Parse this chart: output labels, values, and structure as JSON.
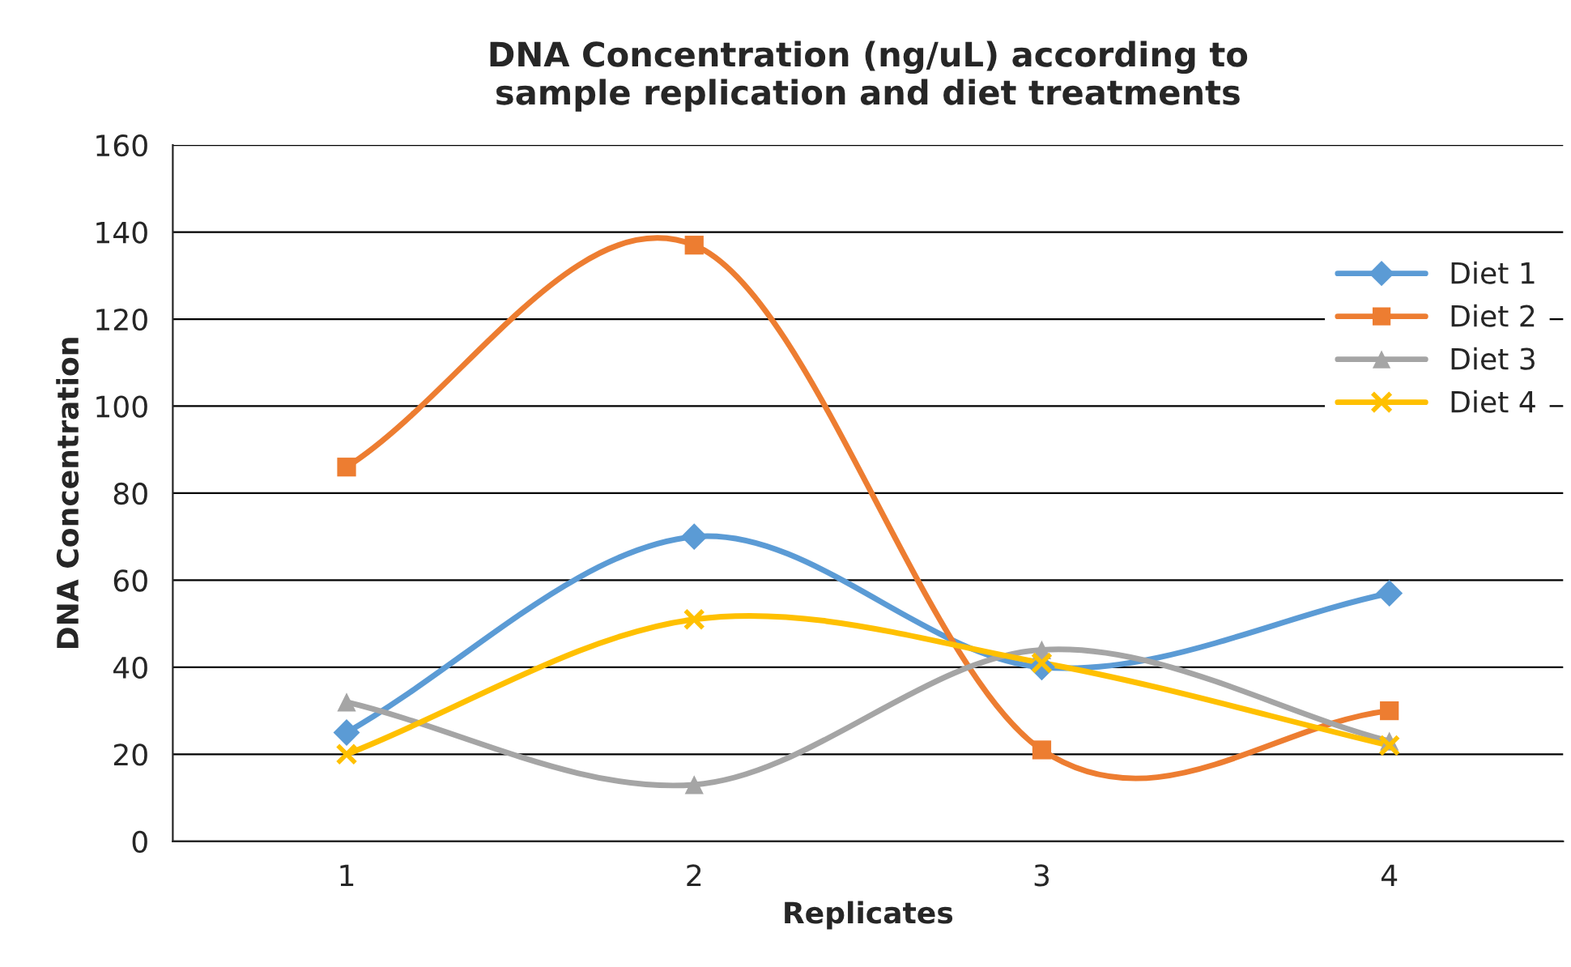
{
  "chart_data": {
    "type": "line",
    "title": "DNA Concentration (ng/uL) according to\nsample replication and diet treatments",
    "xlabel": "Replicates",
    "ylabel": "DNA Concentration",
    "categories": [
      "1",
      "2",
      "3",
      "4"
    ],
    "series": [
      {
        "name": "Diet 1",
        "color": "#5b9bd5",
        "marker": "diamond",
        "values": [
          25,
          70,
          40,
          57
        ]
      },
      {
        "name": "Diet 2",
        "color": "#ed7d31",
        "marker": "square",
        "values": [
          86,
          137,
          21,
          30
        ]
      },
      {
        "name": "Diet 3",
        "color": "#a5a5a5",
        "marker": "triangle",
        "values": [
          32,
          13,
          44,
          23
        ]
      },
      {
        "name": "Diet 4",
        "color": "#ffc000",
        "marker": "cross",
        "values": [
          20,
          51,
          41,
          22
        ]
      }
    ],
    "ylim": [
      0,
      160
    ],
    "yticks": [
      0,
      20,
      40,
      60,
      80,
      100,
      120,
      140,
      160
    ],
    "grid": "y",
    "legend": "right",
    "line_style": "solid"
  }
}
